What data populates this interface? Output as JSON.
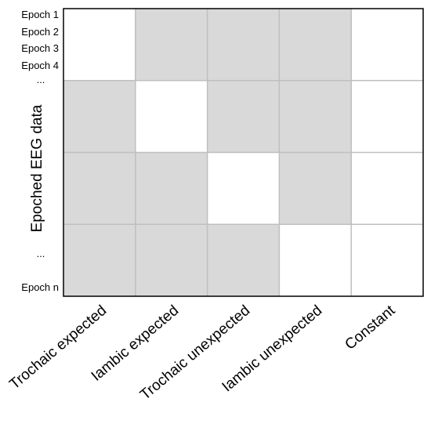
{
  "y_axis_title": "Epoched EEG data",
  "row_labels": [
    "Epoch 1",
    "Epoch 2",
    "Epoch 3",
    "Epoch 4",
    "...",
    "...",
    "Epoch n"
  ],
  "column_labels": [
    "Trochaic expected",
    "Iambic expected",
    "Trochaic unexpected",
    "Iambic unexpected",
    "Constant"
  ],
  "colors": {
    "filled": "#d9d9d9",
    "empty": "#ffffff",
    "grid": "#bfbfbf",
    "border": "#000000"
  },
  "grid_fill": [
    [
      0,
      1,
      1,
      1,
      0
    ],
    [
      1,
      0,
      1,
      1,
      0
    ],
    [
      1,
      1,
      0,
      1,
      0
    ],
    [
      1,
      1,
      1,
      0,
      0
    ]
  ]
}
